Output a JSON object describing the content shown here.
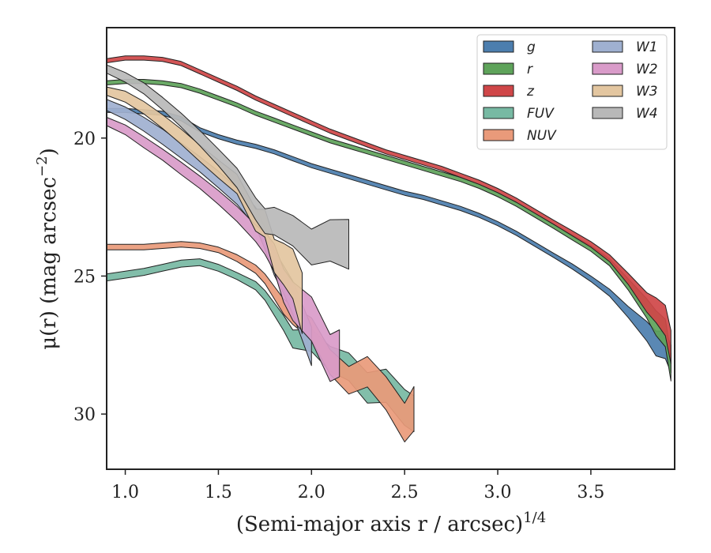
{
  "chart_data": {
    "type": "area",
    "xlabel": "(Semi-major axis r / arcsec)",
    "xlabel_exponent": "1/4",
    "ylabel": "μ(r) (mag arcsec",
    "ylabel_exponent": "−2",
    "ylabel_close": ")",
    "xlim": [
      0.9,
      3.95
    ],
    "ylim": [
      32.0,
      16.0
    ],
    "inverted_y": true,
    "x_ticks": [
      1.0,
      1.5,
      2.0,
      2.5,
      3.0,
      3.5
    ],
    "x_tick_labels": [
      "1.0",
      "1.5",
      "2.0",
      "2.5",
      "3.0",
      "3.5"
    ],
    "y_ticks": [
      20,
      25,
      30
    ],
    "y_tick_labels": [
      "20",
      "25",
      "30"
    ],
    "grid": false,
    "legend_position": "top-right",
    "legend_columns": 2,
    "series": [
      {
        "name": "g",
        "color": "#4c7eae",
        "x": [
          0.9,
          1.0,
          1.1,
          1.2,
          1.3,
          1.4,
          1.5,
          1.6,
          1.7,
          1.8,
          1.9,
          2.0,
          2.1,
          2.2,
          2.3,
          2.4,
          2.5,
          2.6,
          2.7,
          2.8,
          2.9,
          3.0,
          3.1,
          3.2,
          3.3,
          3.4,
          3.5,
          3.6,
          3.7,
          3.8,
          3.85,
          3.9,
          3.93
        ],
        "y": [
          19.0,
          19.0,
          19.05,
          19.1,
          19.3,
          19.7,
          19.95,
          20.15,
          20.3,
          20.5,
          20.75,
          21.0,
          21.2,
          21.4,
          21.6,
          21.8,
          22.0,
          22.15,
          22.35,
          22.55,
          22.8,
          23.1,
          23.45,
          23.85,
          24.25,
          24.65,
          25.1,
          25.6,
          26.3,
          27.0,
          27.4,
          27.8,
          28.2
        ],
        "width": [
          0.15,
          0.15,
          0.15,
          0.15,
          0.15,
          0.15,
          0.15,
          0.15,
          0.15,
          0.15,
          0.15,
          0.15,
          0.15,
          0.15,
          0.15,
          0.15,
          0.15,
          0.15,
          0.15,
          0.15,
          0.15,
          0.15,
          0.15,
          0.15,
          0.15,
          0.18,
          0.2,
          0.25,
          0.4,
          0.7,
          0.9,
          1.0,
          1.0
        ]
      },
      {
        "name": "r",
        "color": "#5ea35a",
        "x": [
          0.9,
          1.0,
          1.1,
          1.2,
          1.3,
          1.4,
          1.5,
          1.6,
          1.7,
          1.8,
          1.9,
          2.0,
          2.1,
          2.2,
          2.3,
          2.4,
          2.5,
          2.6,
          2.7,
          2.8,
          2.9,
          3.0,
          3.1,
          3.2,
          3.3,
          3.4,
          3.5,
          3.6,
          3.7,
          3.8,
          3.85,
          3.9,
          3.93
        ],
        "y": [
          18.0,
          17.95,
          17.95,
          18.0,
          18.1,
          18.3,
          18.55,
          18.8,
          19.1,
          19.35,
          19.6,
          19.85,
          20.1,
          20.3,
          20.5,
          20.7,
          20.9,
          21.1,
          21.3,
          21.5,
          21.75,
          22.05,
          22.4,
          22.8,
          23.2,
          23.6,
          24.0,
          24.5,
          25.3,
          26.2,
          26.7,
          27.4,
          28.0
        ],
        "width": [
          0.15,
          0.15,
          0.15,
          0.15,
          0.15,
          0.15,
          0.15,
          0.15,
          0.15,
          0.15,
          0.15,
          0.15,
          0.15,
          0.15,
          0.15,
          0.15,
          0.15,
          0.15,
          0.15,
          0.15,
          0.15,
          0.15,
          0.15,
          0.15,
          0.15,
          0.18,
          0.2,
          0.25,
          0.4,
          0.7,
          0.9,
          1.0,
          1.0
        ]
      },
      {
        "name": "z",
        "color": "#cf4648",
        "x": [
          0.9,
          1.0,
          1.1,
          1.2,
          1.3,
          1.4,
          1.5,
          1.6,
          1.7,
          1.8,
          1.9,
          2.0,
          2.1,
          2.2,
          2.3,
          2.4,
          2.5,
          2.6,
          2.7,
          2.8,
          2.9,
          3.0,
          3.1,
          3.2,
          3.3,
          3.4,
          3.5,
          3.6,
          3.7,
          3.8,
          3.85,
          3.9,
          3.93
        ],
        "y": [
          17.2,
          17.1,
          17.1,
          17.15,
          17.3,
          17.6,
          17.9,
          18.2,
          18.55,
          18.85,
          19.15,
          19.45,
          19.75,
          20.0,
          20.25,
          20.5,
          20.7,
          20.9,
          21.1,
          21.35,
          21.6,
          21.9,
          22.25,
          22.65,
          23.05,
          23.45,
          23.85,
          24.35,
          25.1,
          25.9,
          26.3,
          26.8,
          27.3
        ],
        "width": [
          0.15,
          0.15,
          0.15,
          0.15,
          0.15,
          0.15,
          0.15,
          0.15,
          0.15,
          0.15,
          0.15,
          0.15,
          0.15,
          0.15,
          0.15,
          0.15,
          0.15,
          0.15,
          0.15,
          0.15,
          0.15,
          0.15,
          0.15,
          0.15,
          0.15,
          0.18,
          0.2,
          0.25,
          0.4,
          0.7,
          0.9,
          1.1,
          1.2
        ]
      },
      {
        "name": "FUV",
        "color": "#77b9a3",
        "x": [
          0.9,
          1.0,
          1.1,
          1.2,
          1.3,
          1.4,
          1.5,
          1.6,
          1.7,
          1.75,
          1.8,
          1.85,
          1.9,
          2.0,
          2.1,
          2.2,
          2.3,
          2.4,
          2.5,
          2.55
        ],
        "y": [
          25.05,
          24.95,
          24.85,
          24.7,
          24.55,
          24.5,
          24.7,
          25.0,
          25.35,
          25.7,
          26.2,
          26.7,
          27.2,
          27.6,
          28.0,
          28.5,
          28.9,
          29.3,
          29.7,
          30.0
        ],
        "width": [
          0.25,
          0.25,
          0.25,
          0.25,
          0.25,
          0.25,
          0.25,
          0.25,
          0.3,
          0.35,
          0.45,
          0.55,
          0.65,
          0.8,
          0.9,
          1.0,
          1.1,
          1.2,
          1.3,
          1.3
        ]
      },
      {
        "name": "NUV",
        "color": "#e99a7a",
        "x": [
          0.9,
          1.0,
          1.1,
          1.2,
          1.3,
          1.4,
          1.5,
          1.6,
          1.7,
          1.75,
          1.8,
          1.85,
          1.9,
          2.0,
          2.1,
          2.2,
          2.3,
          2.4,
          2.5,
          2.55
        ],
        "y": [
          23.95,
          23.95,
          23.95,
          23.9,
          23.85,
          23.9,
          24.05,
          24.35,
          24.75,
          25.1,
          25.6,
          26.1,
          26.6,
          27.2,
          27.8,
          28.4,
          28.8,
          29.3,
          29.8,
          30.2
        ],
        "width": [
          0.2,
          0.2,
          0.2,
          0.2,
          0.2,
          0.2,
          0.2,
          0.25,
          0.3,
          0.35,
          0.45,
          0.55,
          0.65,
          0.8,
          0.9,
          1.0,
          1.1,
          1.2,
          1.4,
          1.6
        ]
      },
      {
        "name": "W1",
        "color": "#9fb0d0",
        "x": [
          0.9,
          1.0,
          1.1,
          1.2,
          1.3,
          1.4,
          1.5,
          1.6,
          1.7,
          1.75,
          1.8,
          1.85,
          1.9,
          2.0
        ],
        "y": [
          18.8,
          19.1,
          19.5,
          19.95,
          20.45,
          20.95,
          21.5,
          22.1,
          22.9,
          23.6,
          24.4,
          25.3,
          26.1,
          27.0
        ],
        "width": [
          0.4,
          0.45,
          0.5,
          0.55,
          0.55,
          0.55,
          0.6,
          0.6,
          0.7,
          0.8,
          0.9,
          1.0,
          1.2,
          1.4
        ]
      },
      {
        "name": "W2",
        "color": "#d99bc9",
        "x": [
          0.9,
          1.0,
          1.1,
          1.2,
          1.3,
          1.4,
          1.5,
          1.6,
          1.7,
          1.75,
          1.8,
          1.85,
          1.9,
          2.0,
          2.1,
          2.15
        ],
        "y": [
          19.4,
          19.7,
          20.15,
          20.6,
          21.1,
          21.6,
          22.15,
          22.75,
          23.45,
          23.85,
          24.55,
          25.3,
          26.1,
          27.0,
          27.6,
          28.0
        ],
        "width": [
          0.3,
          0.35,
          0.4,
          0.4,
          0.45,
          0.45,
          0.5,
          0.55,
          0.6,
          0.8,
          1.0,
          1.2,
          1.4,
          1.6,
          1.7,
          1.7
        ]
      },
      {
        "name": "W3",
        "color": "#e3c6a0",
        "x": [
          0.9,
          1.0,
          1.1,
          1.2,
          1.3,
          1.4,
          1.5,
          1.6,
          1.7,
          1.75,
          1.8,
          1.85,
          1.9,
          1.95
        ],
        "y": [
          18.3,
          18.5,
          18.9,
          19.4,
          19.95,
          20.55,
          21.2,
          21.9,
          22.7,
          23.3,
          23.9,
          24.6,
          25.3,
          25.8
        ],
        "width": [
          0.3,
          0.4,
          0.45,
          0.5,
          0.55,
          0.6,
          0.65,
          0.7,
          0.8,
          1.0,
          1.2,
          1.5,
          1.8,
          2.2
        ]
      },
      {
        "name": "W4",
        "color": "#b8b8b8",
        "x": [
          0.9,
          1.0,
          1.1,
          1.2,
          1.3,
          1.4,
          1.5,
          1.6,
          1.7,
          1.75,
          1.8,
          1.9,
          2.0,
          2.1,
          2.2
        ],
        "y": [
          17.5,
          17.8,
          18.2,
          18.75,
          19.35,
          20.0,
          20.7,
          21.5,
          22.4,
          22.9,
          23.3,
          23.6,
          24.0,
          24.2,
          24.5
        ],
        "width": [
          0.3,
          0.35,
          0.4,
          0.45,
          0.5,
          0.55,
          0.6,
          0.7,
          0.8,
          0.9,
          1.0,
          1.1,
          1.3,
          1.5,
          1.8
        ]
      }
    ]
  }
}
